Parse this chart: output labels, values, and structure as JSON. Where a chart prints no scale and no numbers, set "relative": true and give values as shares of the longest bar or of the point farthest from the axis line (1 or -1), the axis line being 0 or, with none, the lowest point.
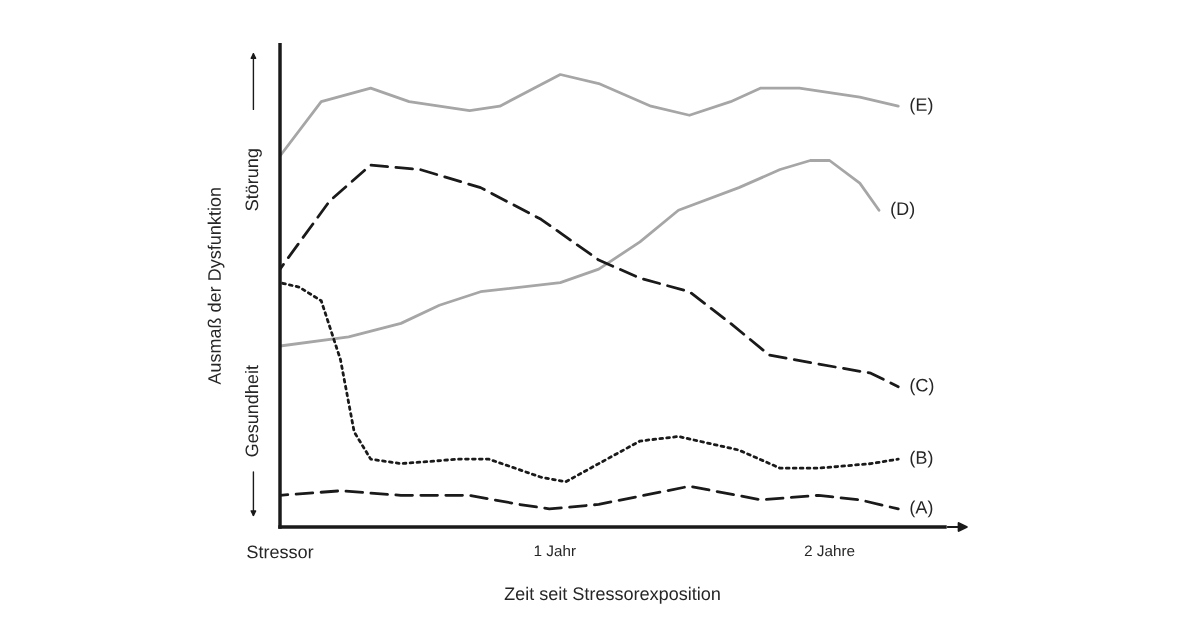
{
  "chart_data": {
    "type": "line",
    "relative": true,
    "xlabel": "Zeit seit Stressorexposition",
    "ylabel": "Ausmaß der Dysfunktion",
    "xlim": [
      0,
      2.42
    ],
    "xticks": [
      {
        "value": 0,
        "label": "Stressor"
      },
      {
        "value": 1,
        "label": "1 Jahr"
      },
      {
        "value": 2,
        "label": "2 Jahre"
      }
    ],
    "annotations": [
      "Gesundheit",
      "Störung"
    ],
    "grid": false,
    "legend": false,
    "series": [
      {
        "name": "(E)",
        "color": "#a6a6a6",
        "line_style": "solid",
        "x": [
          0,
          0.15,
          0.33,
          0.47,
          0.69,
          0.8,
          1.02,
          1.16,
          1.35,
          1.49,
          1.64,
          1.75,
          1.89,
          2.11,
          2.25
        ],
        "values": [
          0.82,
          0.94,
          0.97,
          0.94,
          0.92,
          0.93,
          1.0,
          0.98,
          0.93,
          0.91,
          0.94,
          0.97,
          0.97,
          0.95,
          0.93
        ]
      },
      {
        "name": "(D)",
        "color": "#a6a6a6",
        "line_style": "solid",
        "x": [
          0,
          0.25,
          0.44,
          0.58,
          0.73,
          1.02,
          1.16,
          1.31,
          1.45,
          1.67,
          1.82,
          1.93,
          2.0,
          2.11,
          2.18
        ],
        "values": [
          0.4,
          0.42,
          0.45,
          0.49,
          0.52,
          0.54,
          0.57,
          0.63,
          0.7,
          0.75,
          0.79,
          0.81,
          0.81,
          0.76,
          0.7
        ]
      },
      {
        "name": "(C)",
        "color": "#1a1a1a",
        "line_style": "dashed",
        "x": [
          0,
          0.18,
          0.33,
          0.51,
          0.73,
          0.95,
          1.16,
          1.31,
          1.49,
          1.64,
          1.78,
          1.96,
          2.15,
          2.25
        ],
        "values": [
          0.57,
          0.72,
          0.8,
          0.79,
          0.75,
          0.68,
          0.59,
          0.55,
          0.52,
          0.45,
          0.38,
          0.36,
          0.34,
          0.31
        ]
      },
      {
        "name": "(B)",
        "color": "#1a1a1a",
        "line_style": "dotted",
        "x": [
          0,
          0.07,
          0.15,
          0.22,
          0.27,
          0.33,
          0.44,
          0.65,
          0.76,
          0.95,
          1.04,
          1.16,
          1.31,
          1.45,
          1.67,
          1.82,
          1.96,
          2.15,
          2.25
        ],
        "values": [
          0.54,
          0.53,
          0.5,
          0.37,
          0.21,
          0.15,
          0.14,
          0.15,
          0.15,
          0.11,
          0.1,
          0.14,
          0.19,
          0.2,
          0.17,
          0.13,
          0.13,
          0.14,
          0.15
        ]
      },
      {
        "name": "(A)",
        "color": "#1a1a1a",
        "line_style": "dashed",
        "x": [
          0,
          0.22,
          0.44,
          0.69,
          0.87,
          0.98,
          1.16,
          1.49,
          1.75,
          1.96,
          2.11,
          2.25
        ],
        "values": [
          0.07,
          0.08,
          0.07,
          0.07,
          0.05,
          0.04,
          0.05,
          0.09,
          0.06,
          0.07,
          0.06,
          0.04
        ]
      }
    ]
  }
}
